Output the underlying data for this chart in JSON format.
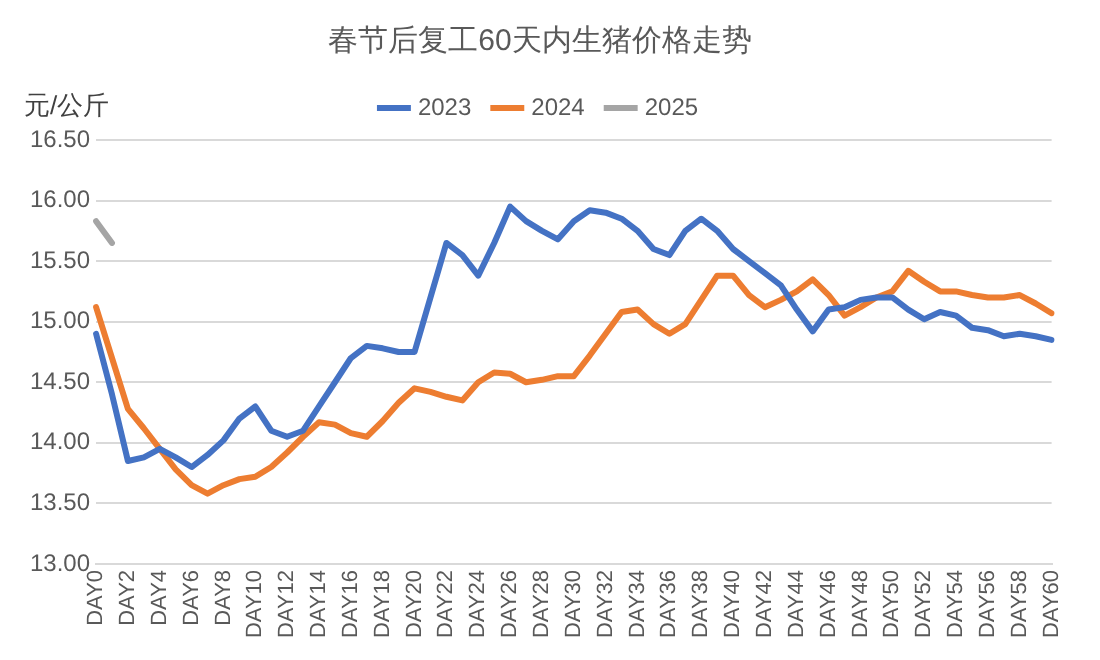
{
  "chart_data": {
    "type": "line",
    "title": "春节后复工60天内生猪价格走势",
    "ylabel": "元/公斤",
    "categories": [
      "DAY0",
      null,
      "DAY2",
      null,
      "DAY4",
      null,
      "DAY6",
      null,
      "DAY8",
      null,
      "DAY10",
      null,
      "DAY12",
      null,
      "DAY14",
      null,
      "DAY16",
      null,
      "DAY18",
      null,
      "DAY20",
      null,
      "DAY22",
      null,
      "DAY24",
      null,
      "DAY26",
      null,
      "DAY28",
      null,
      "DAY30",
      null,
      "DAY32",
      null,
      "DAY34",
      null,
      "DAY36",
      null,
      "DAY38",
      null,
      "DAY40",
      null,
      "DAY42",
      null,
      "DAY44",
      null,
      "DAY46",
      null,
      "DAY48",
      null,
      "DAY50",
      null,
      "DAY52",
      null,
      "DAY54",
      null,
      "DAY56",
      null,
      "DAY58",
      null,
      "DAY60"
    ],
    "series": [
      {
        "name": "2023",
        "color": "#4472c4",
        "values": [
          14.9,
          14.4,
          13.85,
          13.88,
          13.95,
          13.88,
          13.8,
          13.9,
          14.02,
          14.2,
          14.3,
          14.1,
          14.05,
          14.1,
          14.3,
          14.5,
          14.7,
          14.8,
          14.78,
          14.75,
          14.75,
          15.2,
          15.65,
          15.55,
          15.38,
          15.65,
          15.95,
          15.83,
          15.75,
          15.68,
          15.83,
          15.92,
          15.9,
          15.85,
          15.75,
          15.6,
          15.55,
          15.75,
          15.85,
          15.75,
          15.6,
          15.5,
          15.4,
          15.3,
          15.1,
          14.92,
          15.1,
          15.12,
          15.18,
          15.2,
          15.2,
          15.1,
          15.02,
          15.08,
          15.05,
          14.95,
          14.93,
          14.88,
          14.9,
          14.88,
          14.85
        ]
      },
      {
        "name": "2024",
        "color": "#ed7d31",
        "values": [
          15.12,
          14.7,
          14.28,
          14.12,
          13.95,
          13.78,
          13.65,
          13.58,
          13.65,
          13.7,
          13.72,
          13.8,
          13.92,
          14.05,
          14.17,
          14.15,
          14.08,
          14.05,
          14.18,
          14.33,
          14.45,
          14.42,
          14.38,
          14.35,
          14.5,
          14.58,
          14.57,
          14.5,
          14.52,
          14.55,
          14.55,
          14.72,
          14.9,
          15.08,
          15.1,
          14.98,
          14.9,
          14.98,
          15.18,
          15.38,
          15.38,
          15.22,
          15.12,
          15.18,
          15.25,
          15.35,
          15.22,
          15.05,
          15.12,
          15.2,
          15.25,
          15.42,
          15.33,
          15.25,
          15.25,
          15.22,
          15.2,
          15.2,
          15.22,
          15.15,
          15.07
        ]
      },
      {
        "name": "2025",
        "color": "#a5a5a5",
        "values": [
          15.83,
          15.65,
          null,
          null,
          null,
          null,
          null,
          null,
          null,
          null,
          null,
          null,
          null,
          null,
          null,
          null,
          null,
          null,
          null,
          null,
          null,
          null,
          null,
          null,
          null,
          null,
          null,
          null,
          null,
          null,
          null,
          null,
          null,
          null,
          null,
          null,
          null,
          null,
          null,
          null,
          null,
          null,
          null,
          null,
          null,
          null,
          null,
          null,
          null,
          null,
          null,
          null,
          null,
          null,
          null,
          null,
          null,
          null,
          null,
          null,
          null
        ]
      }
    ],
    "ylim": [
      13.0,
      16.5
    ],
    "yticks": [
      {
        "value": 13.0,
        "label": "13.00"
      },
      {
        "value": 13.5,
        "label": "13.50"
      },
      {
        "value": 14.0,
        "label": "14.00"
      },
      {
        "value": 14.5,
        "label": "14.50"
      },
      {
        "value": 15.0,
        "label": "15.00"
      },
      {
        "value": 15.5,
        "label": "15.50"
      },
      {
        "value": 16.0,
        "label": "16.00"
      },
      {
        "value": 16.5,
        "label": "16.50"
      }
    ],
    "grid": "y",
    "legend": "top",
    "marker": "none",
    "line_style": "solid"
  }
}
